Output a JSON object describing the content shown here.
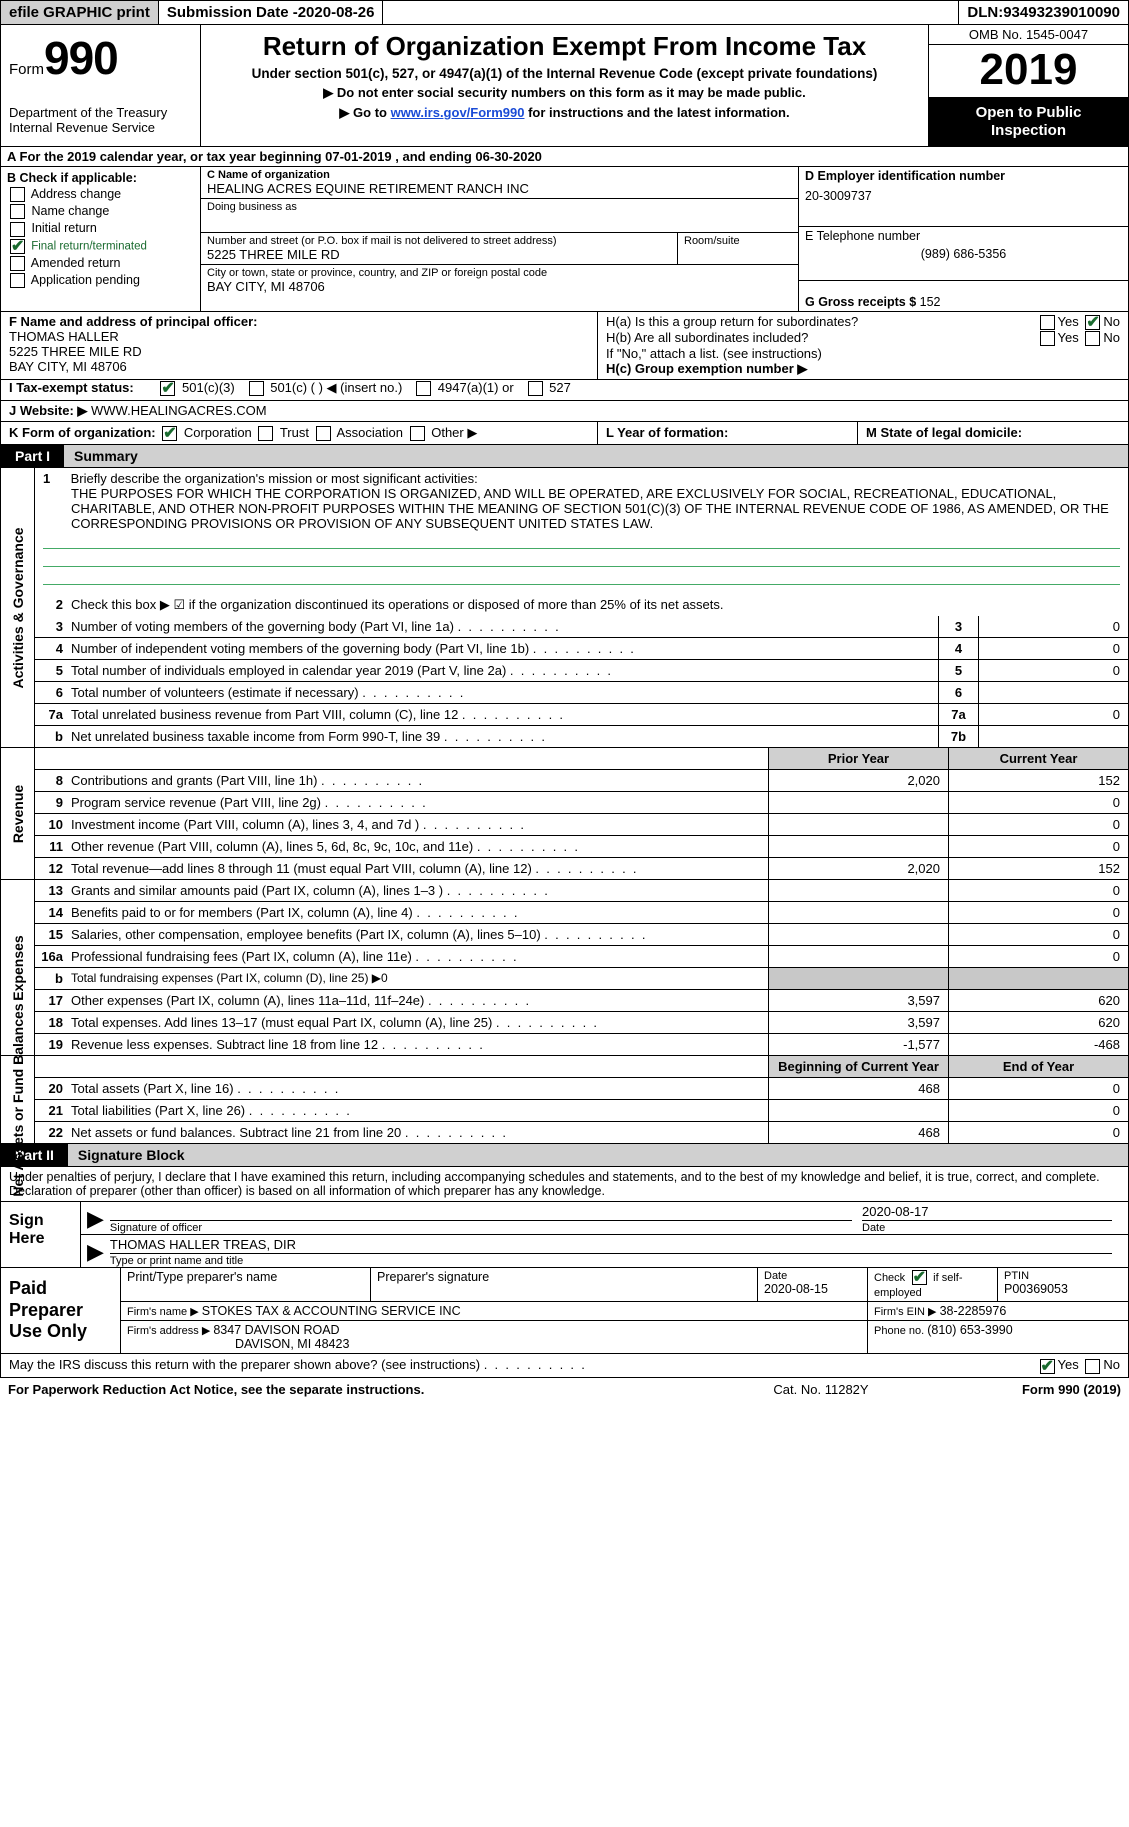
{
  "topbar": {
    "efile": "efile GRAPHIC print",
    "submission_label": "Submission Date - ",
    "submission_date": "2020-08-26",
    "dln_label": "DLN: ",
    "dln": "93493239010090"
  },
  "header": {
    "form_prefix": "Form",
    "form_no": "990",
    "dept1": "Department of the Treasury",
    "dept2": "Internal Revenue Service",
    "title": "Return of Organization Exempt From Income Tax",
    "sub1": "Under section 501(c), 527, or 4947(a)(1) of the Internal Revenue Code (except private foundations)",
    "sub2": "▶ Do not enter social security numbers on this form as it may be made public.",
    "sub3_pre": "▶ Go to ",
    "sub3_link": "www.irs.gov/Form990",
    "sub3_post": " for instructions and the latest information.",
    "omb": "OMB No. 1545-0047",
    "year": "2019",
    "open1": "Open to Public",
    "open2": "Inspection"
  },
  "calyear": "A For the 2019 calendar year, or tax year beginning 07-01-2019    , and ending 06-30-2020",
  "checkB": {
    "label": "B Check if applicable:",
    "opts": [
      "Address change",
      "Name change",
      "Initial return",
      "Final return/terminated",
      "Amended return",
      "Application pending"
    ],
    "checked_idx": 3
  },
  "ident": {
    "c_label": "C Name of organization",
    "org_name": "HEALING ACRES EQUINE RETIREMENT RANCH INC",
    "dba_label": "Doing business as",
    "addr_label": "Number and street (or P.O. box if mail is not delivered to street address)",
    "room_label": "Room/suite",
    "addr": "5225 THREE MILE RD",
    "city_label": "City or town, state or province, country, and ZIP or foreign postal code",
    "city": "BAY CITY, MI  48706",
    "d_label": "D Employer identification number",
    "ein": "20-3009737",
    "e_label": "E Telephone number",
    "phone": "(989) 686-5356",
    "g_label": "G Gross receipts $ ",
    "gross": "152"
  },
  "officer": {
    "f_label": "F  Name and address of principal officer:",
    "name": "THOMAS HALLER",
    "addr1": "5225 THREE MILE RD",
    "addr2": "BAY CITY, MI  48706"
  },
  "groupH": {
    "ha": "H(a)  Is this a group return for subordinates?",
    "hb": "H(b)  Are all subordinates included?",
    "hb_note": "If \"No,\" attach a list. (see instructions)",
    "hc": "H(c)  Group exemption number ▶",
    "yes": "Yes",
    "no": "No"
  },
  "taxstatus": {
    "i_label": "I   Tax-exempt status:",
    "opts": [
      "501(c)(3)",
      "501(c) (  ) ◀ (insert no.)",
      "4947(a)(1) or",
      "527"
    ]
  },
  "website": {
    "j_label": "J   Website: ▶",
    "url": "WWW.HEALINGACRES.COM"
  },
  "korg": {
    "label": "K Form of organization:",
    "opts": [
      "Corporation",
      "Trust",
      "Association",
      "Other ▶"
    ]
  },
  "lm": {
    "l": "L Year of formation:",
    "m": "M State of legal domicile:"
  },
  "part1": {
    "tab": "Part I",
    "title": "Summary"
  },
  "mission": {
    "n1": "1",
    "txt1": "Briefly describe the organization's mission or most significant activities:",
    "body": "THE PURPOSES FOR WHICH THE CORPORATION IS ORGANIZED, AND WILL BE OPERATED, ARE EXCLUSIVELY FOR SOCIAL, RECREATIONAL, EDUCATIONAL, CHARITABLE, AND OTHER NON-PROFIT PURPOSES WITHIN THE MEANING OF SECTION 501(C)(3) OF THE INTERNAL REVENUE CODE OF 1986, AS AMENDED, OR THE CORRESPONDING PROVISIONS OR PROVISION OF ANY SUBSEQUENT UNITED STATES LAW."
  },
  "gov_lines": [
    {
      "n": "2",
      "t": "Check this box ▶ ☑  if the organization discontinued its operations or disposed of more than 25% of its net assets."
    },
    {
      "n": "3",
      "t": "Number of voting members of the governing body (Part VI, line 1a)",
      "box": "3",
      "val": "0"
    },
    {
      "n": "4",
      "t": "Number of independent voting members of the governing body (Part VI, line 1b)",
      "box": "4",
      "val": "0"
    },
    {
      "n": "5",
      "t": "Total number of individuals employed in calendar year 2019 (Part V, line 2a)",
      "box": "5",
      "val": "0"
    },
    {
      "n": "6",
      "t": "Total number of volunteers (estimate if necessary)",
      "box": "6",
      "val": ""
    },
    {
      "n": "7a",
      "t": "Total unrelated business revenue from Part VIII, column (C), line 12",
      "box": "7a",
      "val": "0"
    },
    {
      "n": "b",
      "t": "Net unrelated business taxable income from Form 990-T, line 39",
      "box": "7b",
      "val": ""
    }
  ],
  "rev_hdr": {
    "prior": "Prior Year",
    "curr": "Current Year"
  },
  "revenue": [
    {
      "n": "8",
      "t": "Contributions and grants (Part VIII, line 1h)",
      "p": "2,020",
      "c": "152"
    },
    {
      "n": "9",
      "t": "Program service revenue (Part VIII, line 2g)",
      "p": "",
      "c": "0"
    },
    {
      "n": "10",
      "t": "Investment income (Part VIII, column (A), lines 3, 4, and 7d )",
      "p": "",
      "c": "0"
    },
    {
      "n": "11",
      "t": "Other revenue (Part VIII, column (A), lines 5, 6d, 8c, 9c, 10c, and 11e)",
      "p": "",
      "c": "0"
    },
    {
      "n": "12",
      "t": "Total revenue—add lines 8 through 11 (must equal Part VIII, column (A), line 12)",
      "p": "2,020",
      "c": "152"
    }
  ],
  "expenses": [
    {
      "n": "13",
      "t": "Grants and similar amounts paid (Part IX, column (A), lines 1–3 )",
      "p": "",
      "c": "0"
    },
    {
      "n": "14",
      "t": "Benefits paid to or for members (Part IX, column (A), line 4)",
      "p": "",
      "c": "0"
    },
    {
      "n": "15",
      "t": "Salaries, other compensation, employee benefits (Part IX, column (A), lines 5–10)",
      "p": "",
      "c": "0"
    },
    {
      "n": "16a",
      "t": "Professional fundraising fees (Part IX, column (A), line 11e)",
      "p": "",
      "c": "0"
    },
    {
      "n": "b",
      "t": "Total fundraising expenses (Part IX, column (D), line 25) ▶0",
      "p": null,
      "c": null
    },
    {
      "n": "17",
      "t": "Other expenses (Part IX, column (A), lines 11a–11d, 11f–24e)",
      "p": "3,597",
      "c": "620"
    },
    {
      "n": "18",
      "t": "Total expenses. Add lines 13–17 (must equal Part IX, column (A), line 25)",
      "p": "3,597",
      "c": "620"
    },
    {
      "n": "19",
      "t": "Revenue less expenses. Subtract line 18 from line 12",
      "p": "-1,577",
      "c": "-468"
    }
  ],
  "net_hdr": {
    "prior": "Beginning of Current Year",
    "curr": "End of Year"
  },
  "netassets": [
    {
      "n": "20",
      "t": "Total assets (Part X, line 16)",
      "p": "468",
      "c": "0"
    },
    {
      "n": "21",
      "t": "Total liabilities (Part X, line 26)",
      "p": "",
      "c": "0"
    },
    {
      "n": "22",
      "t": "Net assets or fund balances. Subtract line 21 from line 20",
      "p": "468",
      "c": "0"
    }
  ],
  "part2": {
    "tab": "Part II",
    "title": "Signature Block"
  },
  "sig": {
    "intro": "Under penalties of perjury, I declare that I have examined this return, including accompanying schedules and statements, and to the best of my knowledge and belief, it is true, correct, and complete. Declaration of preparer (other than officer) is based on all information of which preparer has any knowledge.",
    "sign_here": "Sign Here",
    "sig_of_officer": "Signature of officer",
    "date_lbl": "Date",
    "date": "2020-08-17",
    "name_title": "THOMAS HALLER  TREAS, DIR",
    "type_name": "Type or print name and title"
  },
  "prep": {
    "label": "Paid Preparer Use Only",
    "h1": "Print/Type preparer's name",
    "h2": "Preparer's signature",
    "h3_lbl": "Date",
    "h3": "2020-08-15",
    "h4_pre": "Check",
    "h4_post": "if self-employed",
    "h5_lbl": "PTIN",
    "h5": "P00369053",
    "firm_name_lbl": "Firm's name    ▶ ",
    "firm_name": "STOKES TAX & ACCOUNTING SERVICE INC",
    "firm_ein_lbl": "Firm's EIN ▶ ",
    "firm_ein": "38-2285976",
    "firm_addr_lbl": "Firm's address ▶ ",
    "firm_addr1": "8347 DAVISON ROAD",
    "firm_addr2": "DAVISON, MI  48423",
    "phone_lbl": "Phone no. ",
    "phone": "(810) 653-3990"
  },
  "discuss": "May the IRS discuss this return with the preparer shown above? (see instructions)",
  "footer": {
    "left": "For Paperwork Reduction Act Notice, see the separate instructions.",
    "mid": "Cat. No. 11282Y",
    "right": "Form 990 (2019)"
  },
  "labels": {
    "activities": "Activities & Governance",
    "revenue": "Revenue",
    "expenses": "Expenses",
    "net": "Net Assets or Fund Balances"
  }
}
